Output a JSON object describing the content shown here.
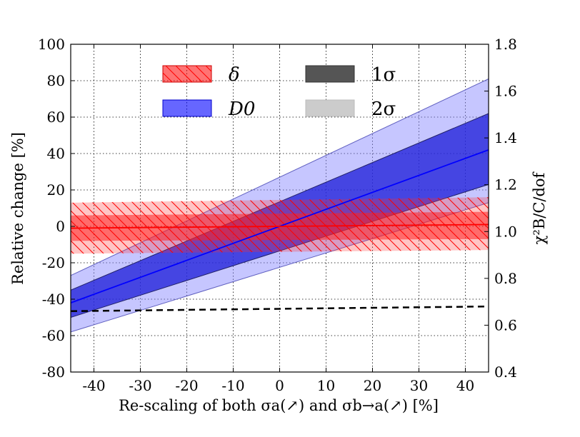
{
  "chart_data": {
    "type": "line",
    "xlabel": "Re-scaling of both σa(↗) and σb→a(↗) [%]",
    "ylabel": "Relative change [%]",
    "y2label": "χ²B/C/dof",
    "xlim": [
      -45,
      45
    ],
    "ylim": [
      -80,
      100
    ],
    "y2lim": [
      0.4,
      1.8
    ],
    "grid": true,
    "x_ticks": [
      -40,
      -30,
      -20,
      -10,
      0,
      10,
      20,
      30,
      40
    ],
    "x_tick_labels": [
      "-40",
      "-30",
      "-20",
      "-10",
      "0",
      "10",
      "20",
      "30",
      "40"
    ],
    "y_ticks": [
      -80,
      -60,
      -40,
      -20,
      0,
      20,
      40,
      60,
      80,
      100
    ],
    "y_tick_labels": [
      "-80",
      "-60",
      "-40",
      "-20",
      "0",
      "20",
      "40",
      "60",
      "80",
      "100"
    ],
    "y2_ticks": [
      0.4,
      0.6,
      0.8,
      1.0,
      1.2,
      1.4,
      1.6,
      1.8
    ],
    "y2_tick_labels": [
      "0.4",
      "0.6",
      "0.8",
      "1.0",
      "1.2",
      "1.4",
      "1.6",
      "1.8"
    ],
    "legend": {
      "placement": "top",
      "entries": [
        {
          "label": "δ",
          "style": "red-hatched"
        },
        {
          "label": "1σ",
          "style": "dark-gray"
        },
        {
          "label": "D0",
          "style": "blue"
        },
        {
          "label": "2σ",
          "style": "light-gray"
        }
      ]
    },
    "x": [
      -45,
      45
    ],
    "series": [
      {
        "name": "D0",
        "color": "#0000ff",
        "central": [
          -42,
          42
        ],
        "band_1sigma_lower": [
          -50,
          23
        ],
        "band_1sigma_upper": [
          -35,
          62
        ],
        "band_2sigma_lower": [
          -58,
          13
        ],
        "band_2sigma_upper": [
          -27,
          81
        ]
      },
      {
        "name": "δ",
        "color": "#ff0000",
        "central": [
          -1,
          1
        ],
        "band_1sigma_lower": [
          -8,
          -7
        ],
        "band_1sigma_upper": [
          6,
          8
        ],
        "band_2sigma_lower": [
          -15,
          -13
        ],
        "band_2sigma_upper": [
          13,
          16
        ]
      },
      {
        "name": "χ²B/C/dof",
        "axis": "right",
        "color": "#000000",
        "dashed": true,
        "values": [
          0.66,
          0.68
        ]
      }
    ]
  }
}
